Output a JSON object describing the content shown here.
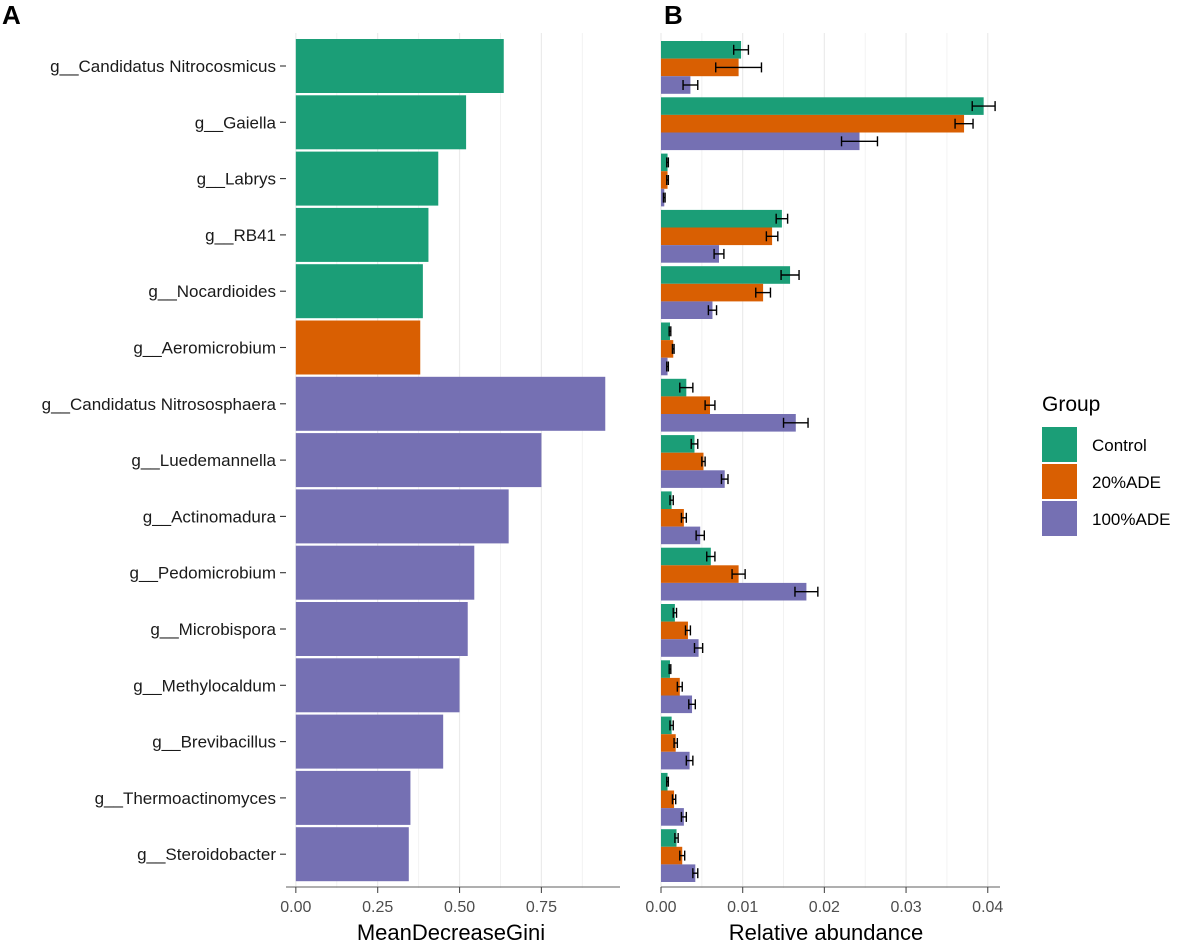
{
  "panel_a": {
    "letter": "A",
    "chart_data": {
      "type": "bar",
      "orientation": "horizontal",
      "categories": [
        "g__Candidatus Nitrocosmicus",
        "g__Gaiella",
        "g__Labrys",
        "g__RB41",
        "g__Nocardioides",
        "g__Aeromicrobium",
        "g__Candidatus Nitrososphaera",
        "g__Luedemannella",
        "g__Actinomadura",
        "g__Pedomicrobium",
        "g__Microbispora",
        "g__Methylocaldum",
        "g__Brevibacillus",
        "g__Thermoactinomyces",
        "g__Steroidobacter"
      ],
      "values": [
        0.635,
        0.52,
        0.435,
        0.405,
        0.388,
        0.38,
        0.945,
        0.75,
        0.65,
        0.545,
        0.525,
        0.5,
        0.45,
        0.35,
        0.345
      ],
      "bar_groups": [
        "Control",
        "Control",
        "Control",
        "Control",
        "Control",
        "20%ADE",
        "100%ADE",
        "100%ADE",
        "100%ADE",
        "100%ADE",
        "100%ADE",
        "100%ADE",
        "100%ADE",
        "100%ADE",
        "100%ADE"
      ],
      "xlabel": "MeanDecreaseGini",
      "ylabel": "",
      "xlim": [
        -0.03,
        0.99
      ],
      "xticks": [
        0,
        0.25,
        0.5,
        0.75
      ],
      "xtick_labels": [
        "0.00",
        "0.25",
        "0.50",
        "0.75"
      ]
    }
  },
  "panel_b": {
    "letter": "B",
    "chart_data": {
      "type": "bar",
      "orientation": "horizontal",
      "grouped": true,
      "categories": [
        "g__Candidatus Nitrocosmicus",
        "g__Gaiella",
        "g__Labrys",
        "g__RB41",
        "g__Nocardioides",
        "g__Aeromicrobium",
        "g__Candidatus Nitrososphaera",
        "g__Luedemannella",
        "g__Actinomadura",
        "g__Pedomicrobium",
        "g__Microbispora",
        "g__Methylocaldum",
        "g__Brevibacillus",
        "g__Thermoactinomyces",
        "g__Steroidobacter"
      ],
      "series": [
        {
          "name": "Control",
          "values": [
            0.0098,
            0.0395,
            0.0008,
            0.0148,
            0.0158,
            0.0011,
            0.0031,
            0.0041,
            0.0013,
            0.0061,
            0.0017,
            0.0011,
            0.0013,
            0.0008,
            0.0019
          ],
          "errors": [
            0.0009,
            0.0014,
            0.0001,
            0.0007,
            0.0011,
            0.0001,
            0.0008,
            0.0004,
            0.0002,
            0.0005,
            0.0002,
            0.0001,
            0.0002,
            0.0001,
            0.0002
          ]
        },
        {
          "name": "20%ADE",
          "values": [
            0.0095,
            0.0371,
            0.0008,
            0.0136,
            0.0125,
            0.0015,
            0.006,
            0.0052,
            0.0028,
            0.0095,
            0.0033,
            0.0023,
            0.0018,
            0.0016,
            0.0026
          ],
          "errors": [
            0.0028,
            0.0011,
            0.0001,
            0.0007,
            0.0009,
            0.0001,
            0.0006,
            0.0002,
            0.0003,
            0.0008,
            0.0003,
            0.0003,
            0.0002,
            0.0002,
            0.0003
          ]
        },
        {
          "name": "100%ADE",
          "values": [
            0.0036,
            0.0243,
            0.0004,
            0.0071,
            0.0063,
            0.0008,
            0.0165,
            0.0078,
            0.0048,
            0.0178,
            0.0046,
            0.0038,
            0.0035,
            0.0028,
            0.0042
          ],
          "errors": [
            0.0009,
            0.0022,
            0.0001,
            0.0006,
            0.0005,
            0.0001,
            0.0015,
            0.0004,
            0.0005,
            0.0014,
            0.0005,
            0.0004,
            0.0004,
            0.0003,
            0.0003
          ]
        }
      ],
      "xlabel": "Relative abundance",
      "ylabel": "",
      "xlim": [
        0,
        0.0415
      ],
      "xticks": [
        0,
        0.01,
        0.02,
        0.03,
        0.04
      ],
      "xtick_labels": [
        "0.00",
        "0.01",
        "0.02",
        "0.03",
        "0.04"
      ]
    }
  },
  "legend": {
    "title": "Group",
    "placement": "right",
    "items": [
      "Control",
      "20%ADE",
      "100%ADE"
    ]
  },
  "colors": {
    "Control": "#1b9e77",
    "20%ADE": "#d95f02",
    "100%ADE": "#7570b3",
    "grid": "#ebebeb",
    "axis": "#4d4d4d",
    "errorbar": "#000000"
  }
}
